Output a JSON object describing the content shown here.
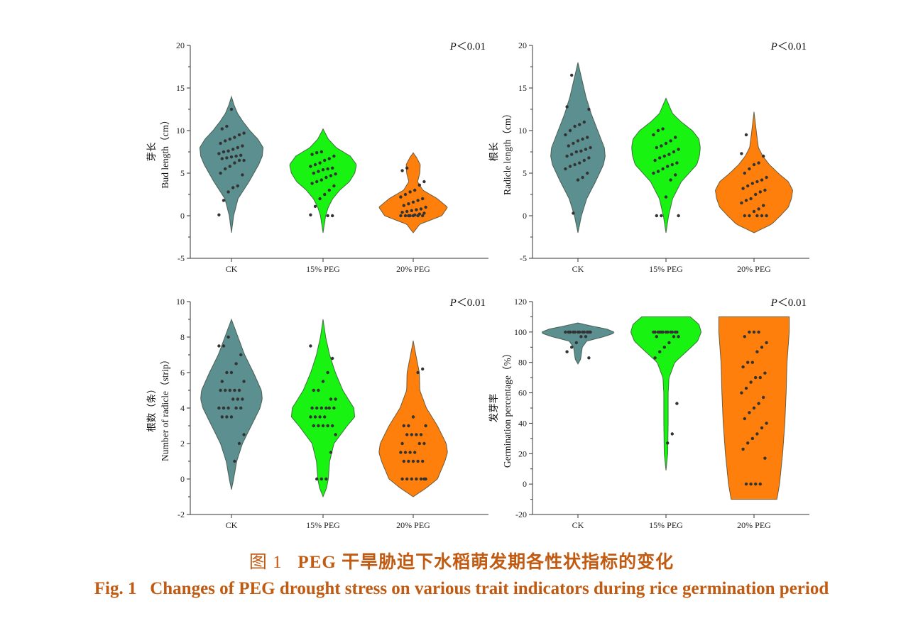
{
  "caption": {
    "zh_label": "图 1",
    "zh_text": "PEG 干旱胁迫下水稻萌发期各性状指标的变化",
    "en_label": "Fig. 1",
    "en_text": "Changes of PEG drought stress on various trait indicators during rice germination period"
  },
  "colors": {
    "ck": "#5b8f90",
    "peg15": "#18f312",
    "peg20": "#ff7f0c",
    "dots": "#333333"
  },
  "chart_data": [
    {
      "type": "violin",
      "ylabel_zh": "芽长",
      "ylabel_en": "Bud length（cm）",
      "ylim": [
        -5,
        20
      ],
      "yticks": [
        -5,
        0,
        5,
        10,
        15,
        20
      ],
      "categories": [
        "CK",
        "15% PEG",
        "20% PEG"
      ],
      "annotation": {
        "italic": "P",
        "rest": "<0.01"
      },
      "violins": [
        {
          "range": [
            -2,
            14
          ],
          "profile": [
            [
              -2,
              0
            ],
            [
              0,
              0.05
            ],
            [
              2,
              0.15
            ],
            [
              4,
              0.4
            ],
            [
              6,
              0.62
            ],
            [
              7,
              0.7
            ],
            [
              8,
              0.72
            ],
            [
              9,
              0.6
            ],
            [
              10,
              0.42
            ],
            [
              11,
              0.27
            ],
            [
              12,
              0.14
            ],
            [
              13,
              0.06
            ],
            [
              14,
              0
            ]
          ]
        },
        {
          "range": [
            -2,
            10.2
          ],
          "profile": [
            [
              -2,
              0
            ],
            [
              0,
              0.06
            ],
            [
              1,
              0.12
            ],
            [
              2,
              0.22
            ],
            [
              3,
              0.38
            ],
            [
              4,
              0.6
            ],
            [
              5,
              0.72
            ],
            [
              6,
              0.76
            ],
            [
              7,
              0.62
            ],
            [
              8,
              0.3
            ],
            [
              9,
              0.12
            ],
            [
              10.2,
              0
            ]
          ]
        },
        {
          "range": [
            -2,
            7.4
          ],
          "profile": [
            [
              -2,
              0
            ],
            [
              -1,
              0.15
            ],
            [
              0,
              0.65
            ],
            [
              1,
              0.78
            ],
            [
              2,
              0.55
            ],
            [
              3,
              0.22
            ],
            [
              4,
              0.1
            ],
            [
              5,
              0.15
            ],
            [
              6,
              0.16
            ],
            [
              6.8,
              0.08
            ],
            [
              7.4,
              0
            ]
          ]
        }
      ],
      "points": [
        [
          0.1,
          1.8,
          2.8,
          3.3,
          3.5,
          4.8,
          5.0,
          5.5,
          5.8,
          6.2,
          6.5,
          6.5,
          6.7,
          6.8,
          6.9,
          7.0,
          7.1,
          7.3,
          7.5,
          7.6,
          7.8,
          8.0,
          8.2,
          8.5,
          8.8,
          9.0,
          9.2,
          9.5,
          9.7,
          10.2,
          10.5,
          12.5
        ],
        [
          0,
          0,
          0.1,
          1.1,
          2.0,
          2.5,
          3.0,
          3.5,
          3.8,
          4.0,
          4.2,
          4.5,
          4.7,
          4.9,
          5.0,
          5.2,
          5.4,
          5.5,
          5.6,
          5.8,
          6.0,
          6.2,
          6.5,
          6.7,
          7.0,
          7.2,
          7.4,
          7.5
        ],
        [
          0,
          0,
          0,
          0,
          0,
          0,
          0,
          0.1,
          0.2,
          0.3,
          0.4,
          0.5,
          0.6,
          0.7,
          0.8,
          1.0,
          1.2,
          1.4,
          1.6,
          1.8,
          2.0,
          2.2,
          2.5,
          2.8,
          3.0,
          3.6,
          4.0,
          5.3,
          5.6
        ]
      ]
    },
    {
      "type": "violin",
      "ylabel_zh": "根长",
      "ylabel_en": "Radicle length（cm）",
      "ylim": [
        -5,
        20
      ],
      "yticks": [
        -5,
        0,
        5,
        10,
        15,
        20
      ],
      "categories": [
        "CK",
        "15% PEG",
        "20% PEG"
      ],
      "annotation": {
        "italic": "P",
        "rest": "<0.01"
      },
      "violins": [
        {
          "range": [
            -2,
            18
          ],
          "profile": [
            [
              -2,
              0
            ],
            [
              0,
              0.08
            ],
            [
              2,
              0.2
            ],
            [
              4,
              0.4
            ],
            [
              6,
              0.58
            ],
            [
              7,
              0.62
            ],
            [
              8,
              0.6
            ],
            [
              10,
              0.45
            ],
            [
              12,
              0.3
            ],
            [
              14,
              0.18
            ],
            [
              16,
              0.09
            ],
            [
              18,
              0
            ]
          ]
        },
        {
          "range": [
            -2,
            13.8
          ],
          "profile": [
            [
              -2,
              0
            ],
            [
              0,
              0.06
            ],
            [
              2,
              0.15
            ],
            [
              4,
              0.35
            ],
            [
              6,
              0.7
            ],
            [
              7,
              0.76
            ],
            [
              8,
              0.78
            ],
            [
              9,
              0.75
            ],
            [
              10,
              0.6
            ],
            [
              11,
              0.35
            ],
            [
              12,
              0.15
            ],
            [
              13.8,
              0
            ]
          ]
        },
        {
          "range": [
            -2,
            12.2
          ],
          "profile": [
            [
              -2,
              0
            ],
            [
              -1,
              0.4
            ],
            [
              0,
              0.6
            ],
            [
              1,
              0.78
            ],
            [
              2,
              0.85
            ],
            [
              3,
              0.88
            ],
            [
              4,
              0.78
            ],
            [
              5,
              0.55
            ],
            [
              6,
              0.35
            ],
            [
              7,
              0.2
            ],
            [
              8,
              0.1
            ],
            [
              10,
              0.05
            ],
            [
              12.2,
              0
            ]
          ]
        }
      ],
      "points": [
        [
          0.3,
          4.2,
          4.5,
          5.0,
          5.5,
          5.8,
          6.0,
          6.2,
          6.5,
          6.8,
          7.0,
          7.2,
          7.5,
          7.6,
          7.8,
          8.0,
          8.2,
          8.5,
          8.8,
          9.0,
          9.2,
          9.5,
          10.0,
          10.5,
          10.7,
          11.0,
          12.5,
          12.8,
          16.5
        ],
        [
          0,
          0,
          0,
          2.2,
          4.2,
          4.8,
          5.0,
          5.2,
          5.5,
          5.8,
          6.0,
          6.2,
          6.5,
          6.8,
          7.0,
          7.2,
          7.5,
          7.8,
          8.0,
          8.2,
          8.5,
          8.8,
          9.2,
          9.5,
          10.0,
          10.2
        ],
        [
          0,
          0,
          0,
          0,
          0,
          0.5,
          0.8,
          1.2,
          1.5,
          1.8,
          2.0,
          2.5,
          2.8,
          3.0,
          3.2,
          3.5,
          3.8,
          4.0,
          4.2,
          4.5,
          5.0,
          5.5,
          6.0,
          6.2,
          7.0,
          7.3,
          9.5
        ]
      ]
    },
    {
      "type": "violin",
      "ylabel_zh": "根数（条）",
      "ylabel_en": "Number of radicle（strip）",
      "ylim": [
        -2,
        10
      ],
      "yticks": [
        -2,
        0,
        2,
        4,
        6,
        8,
        10
      ],
      "categories": [
        "CK",
        "15% PEG",
        "20% PEG"
      ],
      "annotation": {
        "italic": "P",
        "rest": "<0.01"
      },
      "violins": [
        {
          "range": [
            -0.6,
            9
          ],
          "profile": [
            [
              -0.6,
              0
            ],
            [
              0,
              0.05
            ],
            [
              1,
              0.12
            ],
            [
              2,
              0.25
            ],
            [
              3,
              0.45
            ],
            [
              4,
              0.65
            ],
            [
              4.5,
              0.7
            ],
            [
              5,
              0.68
            ],
            [
              6,
              0.5
            ],
            [
              7,
              0.3
            ],
            [
              8,
              0.15
            ],
            [
              9,
              0
            ]
          ]
        },
        {
          "range": [
            -1,
            9
          ],
          "profile": [
            [
              -1,
              0
            ],
            [
              -0.5,
              0.08
            ],
            [
              0,
              0.12
            ],
            [
              1,
              0.15
            ],
            [
              2,
              0.25
            ],
            [
              3,
              0.55
            ],
            [
              3.5,
              0.72
            ],
            [
              4,
              0.7
            ],
            [
              5,
              0.45
            ],
            [
              6,
              0.28
            ],
            [
              7,
              0.15
            ],
            [
              8,
              0.06
            ],
            [
              9,
              0
            ]
          ]
        },
        {
          "range": [
            -1,
            7.8
          ],
          "profile": [
            [
              -1,
              0
            ],
            [
              -0.5,
              0.3
            ],
            [
              0,
              0.55
            ],
            [
              1,
              0.72
            ],
            [
              1.5,
              0.78
            ],
            [
              2,
              0.75
            ],
            [
              3,
              0.55
            ],
            [
              4,
              0.3
            ],
            [
              5,
              0.15
            ],
            [
              6,
              0.14
            ],
            [
              7,
              0.06
            ],
            [
              7.8,
              0
            ]
          ]
        }
      ],
      "points": [
        [
          1.0,
          2.0,
          2.5,
          3.5,
          3.5,
          3.5,
          4.0,
          4.0,
          4.0,
          4.0,
          4.0,
          4.5,
          4.5,
          4.5,
          5.0,
          5.0,
          5.0,
          5.0,
          5.0,
          5.5,
          5.5,
          6.0,
          6.0,
          6.5,
          7.0,
          7.5,
          7.5,
          8.0
        ],
        [
          0,
          0,
          0,
          1.5,
          2.5,
          3.0,
          3.0,
          3.0,
          3.0,
          3.0,
          3.5,
          3.5,
          3.5,
          3.5,
          4.0,
          4.0,
          4.0,
          4.0,
          4.0,
          4.0,
          4.5,
          4.5,
          5.0,
          5.0,
          5.5,
          6.0,
          6.8,
          7.5
        ],
        [
          0,
          0,
          0,
          0,
          0,
          0,
          0,
          1.0,
          1.0,
          1.0,
          1.0,
          1.0,
          1.5,
          1.5,
          1.5,
          1.5,
          2.0,
          2.0,
          2.0,
          2.5,
          2.5,
          2.5,
          2.5,
          3.0,
          3.0,
          3.0,
          3.5,
          6.0,
          6.2
        ]
      ]
    },
    {
      "type": "violin",
      "ylabel_zh": "发芽率",
      "ylabel_en": "Germination percentage（%）",
      "ylim": [
        -20,
        120
      ],
      "yticks": [
        -20,
        0,
        20,
        40,
        60,
        80,
        100,
        120
      ],
      "categories": [
        "CK",
        "15% PEG",
        "20% PEG"
      ],
      "annotation": {
        "italic": "P",
        "rest": "<0.01"
      },
      "violins": [
        {
          "range": [
            79,
            106
          ],
          "profile": [
            [
              79,
              0
            ],
            [
              82,
              0.06
            ],
            [
              86,
              0.08
            ],
            [
              90,
              0.1
            ],
            [
              94,
              0.2
            ],
            [
              97,
              0.6
            ],
            [
              99,
              0.8
            ],
            [
              100,
              0.82
            ],
            [
              102,
              0.65
            ],
            [
              104,
              0.3
            ],
            [
              106,
              0
            ]
          ]
        },
        {
          "range": [
            9,
            110
          ],
          "profile": [
            [
              9,
              0
            ],
            [
              20,
              0.04
            ],
            [
              40,
              0.05
            ],
            [
              60,
              0.05
            ],
            [
              70,
              0.07
            ],
            [
              80,
              0.2
            ],
            [
              88,
              0.5
            ],
            [
              94,
              0.72
            ],
            [
              100,
              0.8
            ],
            [
              105,
              0.75
            ],
            [
              110,
              0.55
            ]
          ]
        },
        {
          "range": [
            -10,
            110
          ],
          "profile": [
            [
              -10,
              0.52
            ],
            [
              0,
              0.58
            ],
            [
              20,
              0.65
            ],
            [
              40,
              0.7
            ],
            [
              60,
              0.73
            ],
            [
              80,
              0.75
            ],
            [
              100,
              0.8
            ],
            [
              110,
              0.8
            ]
          ]
        }
      ],
      "points": [
        [
          83,
          87,
          90,
          93,
          97,
          97,
          100,
          100,
          100,
          100,
          100,
          100,
          100,
          100,
          100,
          100,
          100,
          100
        ],
        [
          27,
          33,
          53,
          83,
          87,
          90,
          93,
          97,
          97,
          97,
          100,
          100,
          100,
          100,
          100,
          100,
          100,
          100,
          100,
          100,
          100,
          100
        ],
        [
          0,
          0,
          0,
          0,
          17,
          23,
          27,
          30,
          33,
          37,
          40,
          43,
          47,
          50,
          53,
          57,
          60,
          63,
          67,
          70,
          70,
          73,
          77,
          80,
          80,
          87,
          90,
          93,
          97,
          100,
          100,
          100
        ]
      ]
    }
  ]
}
